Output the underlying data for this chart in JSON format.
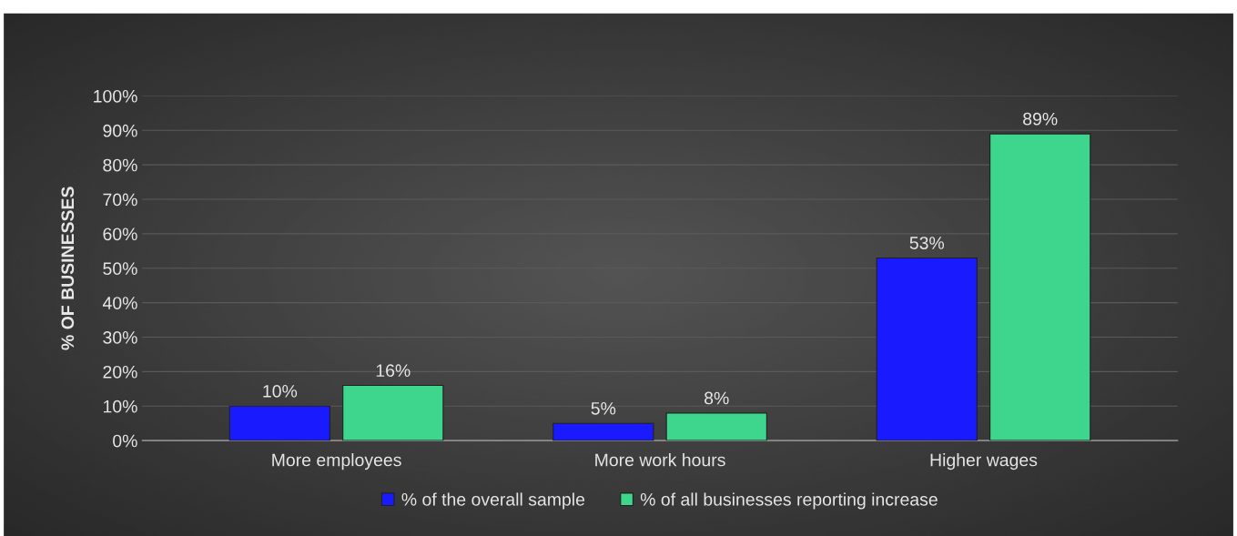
{
  "chart_data": {
    "type": "bar",
    "ylabel": "% OF BUSINESSES",
    "categories": [
      "More employees",
      "More work hours",
      "Higher wages"
    ],
    "series": [
      {
        "name": "% of the overall sample",
        "color": "#1a1aff",
        "values": [
          10,
          5,
          53
        ],
        "value_labels": [
          "10%",
          "5%",
          "53%"
        ]
      },
      {
        "name": "% of all businesses reporting increase",
        "color": "#3dd68c",
        "values": [
          16,
          8,
          89
        ],
        "value_labels": [
          "16%",
          "8%",
          "89%"
        ]
      }
    ],
    "ylim": [
      0,
      100
    ],
    "yticks": [
      {
        "value": 0,
        "label": "0%"
      },
      {
        "value": 10,
        "label": "10%"
      },
      {
        "value": 20,
        "label": "20%"
      },
      {
        "value": 30,
        "label": "30%"
      },
      {
        "value": 40,
        "label": "40%"
      },
      {
        "value": 50,
        "label": "50%"
      },
      {
        "value": 60,
        "label": "60%"
      },
      {
        "value": 70,
        "label": "70%"
      },
      {
        "value": 80,
        "label": "80%"
      },
      {
        "value": 90,
        "label": "90%"
      },
      {
        "value": 100,
        "label": "100%"
      }
    ],
    "grid": "y",
    "legend": "bottom"
  }
}
